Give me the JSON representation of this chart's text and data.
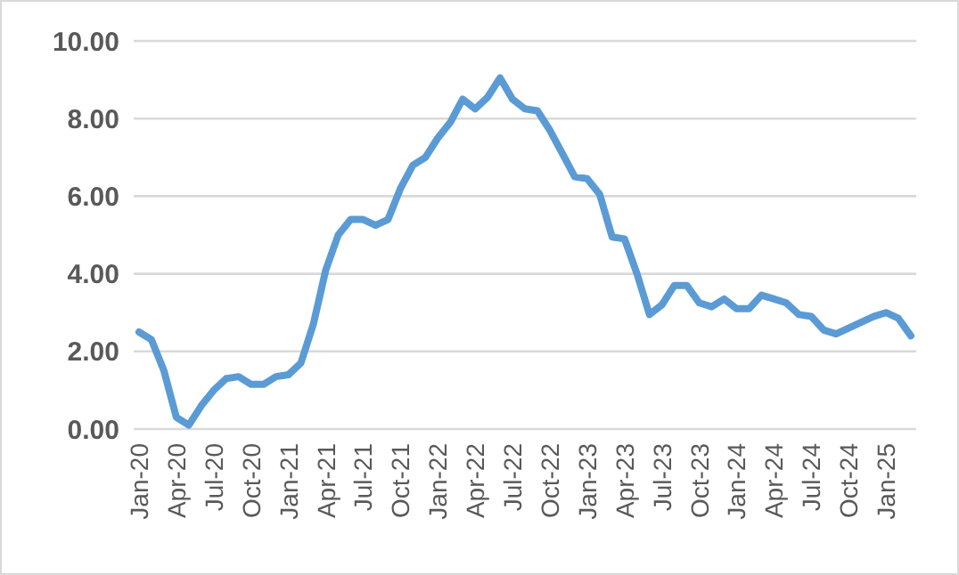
{
  "chart_data": {
    "type": "line",
    "categories": [
      "Jan-20",
      null,
      null,
      "Apr-20",
      null,
      null,
      "Jul-20",
      null,
      null,
      "Oct-20",
      null,
      null,
      "Jan-21",
      null,
      null,
      "Apr-21",
      null,
      null,
      "Jul-21",
      null,
      null,
      "Oct-21",
      null,
      null,
      "Jan-22",
      null,
      null,
      "Apr-22",
      null,
      null,
      "Jul-22",
      null,
      null,
      "Oct-22",
      null,
      null,
      "Jan-23",
      null,
      null,
      "Apr-23",
      null,
      null,
      "Jul-23",
      null,
      null,
      "Oct-23",
      null,
      null,
      "Jan-24",
      null,
      null,
      "Apr-24",
      null,
      null,
      "Jul-24",
      null,
      null,
      "Oct-24",
      null,
      null,
      "Jan-25",
      null,
      null
    ],
    "series": [
      {
        "color": "#5b9bd5",
        "values": [
          2.5,
          2.3,
          1.5,
          0.3,
          0.1,
          0.6,
          1.0,
          1.3,
          1.35,
          1.15,
          1.15,
          1.35,
          1.4,
          1.7,
          2.7,
          4.1,
          5.0,
          5.4,
          5.4,
          5.25,
          5.4,
          6.2,
          6.8,
          7.0,
          7.5,
          7.9,
          8.5,
          8.25,
          8.55,
          9.05,
          8.5,
          8.25,
          8.2,
          7.7,
          7.1,
          6.5,
          6.45,
          6.05,
          4.95,
          4.9,
          4.0,
          2.95,
          3.2,
          3.7,
          3.7,
          3.25,
          3.15,
          3.35,
          3.1,
          3.1,
          3.45,
          3.35,
          3.25,
          2.95,
          2.9,
          2.55,
          2.45,
          2.6,
          2.75,
          2.9,
          3.0,
          2.85,
          2.4
        ]
      }
    ],
    "ylim": [
      0,
      10
    ],
    "yticks": [
      {
        "value": 0,
        "label": "0.00"
      },
      {
        "value": 2,
        "label": "2.00"
      },
      {
        "value": 4,
        "label": "4.00"
      },
      {
        "value": 6,
        "label": "6.00"
      },
      {
        "value": 8,
        "label": "8.00"
      },
      {
        "value": 10,
        "label": "10.00"
      }
    ],
    "grid": "y",
    "marker": "none",
    "line_style": "solid"
  }
}
